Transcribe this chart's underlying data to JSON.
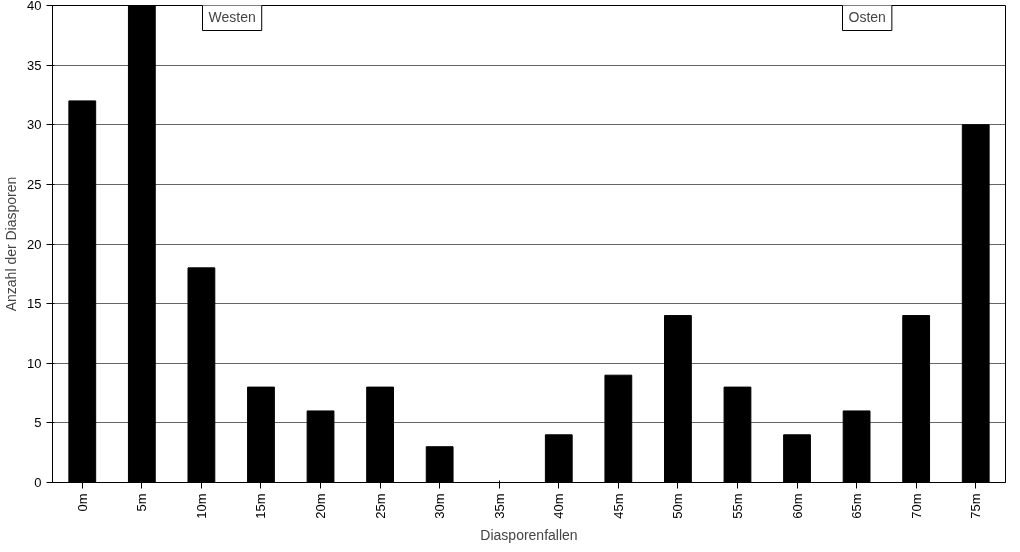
{
  "chart_data": {
    "type": "bar",
    "xlabel": "Diasporenfallen",
    "ylabel": "Anzahl der Diasporen",
    "categories": [
      "0m",
      "5m",
      "10m",
      "15m",
      "20m",
      "25m",
      "30m",
      "35m",
      "40m",
      "45m",
      "50m",
      "55m",
      "60m",
      "65m",
      "70m",
      "75m"
    ],
    "values": [
      32,
      40,
      18,
      8,
      6,
      8,
      3,
      0,
      4,
      9,
      14,
      8,
      4,
      6,
      14,
      30
    ],
    "color": "#000000",
    "ylim": [
      0,
      40
    ],
    "yticks": [
      0,
      5,
      10,
      15,
      20,
      25,
      30,
      35,
      40
    ],
    "grid": "y",
    "annotations": [
      "Westen",
      "Osten"
    ]
  }
}
